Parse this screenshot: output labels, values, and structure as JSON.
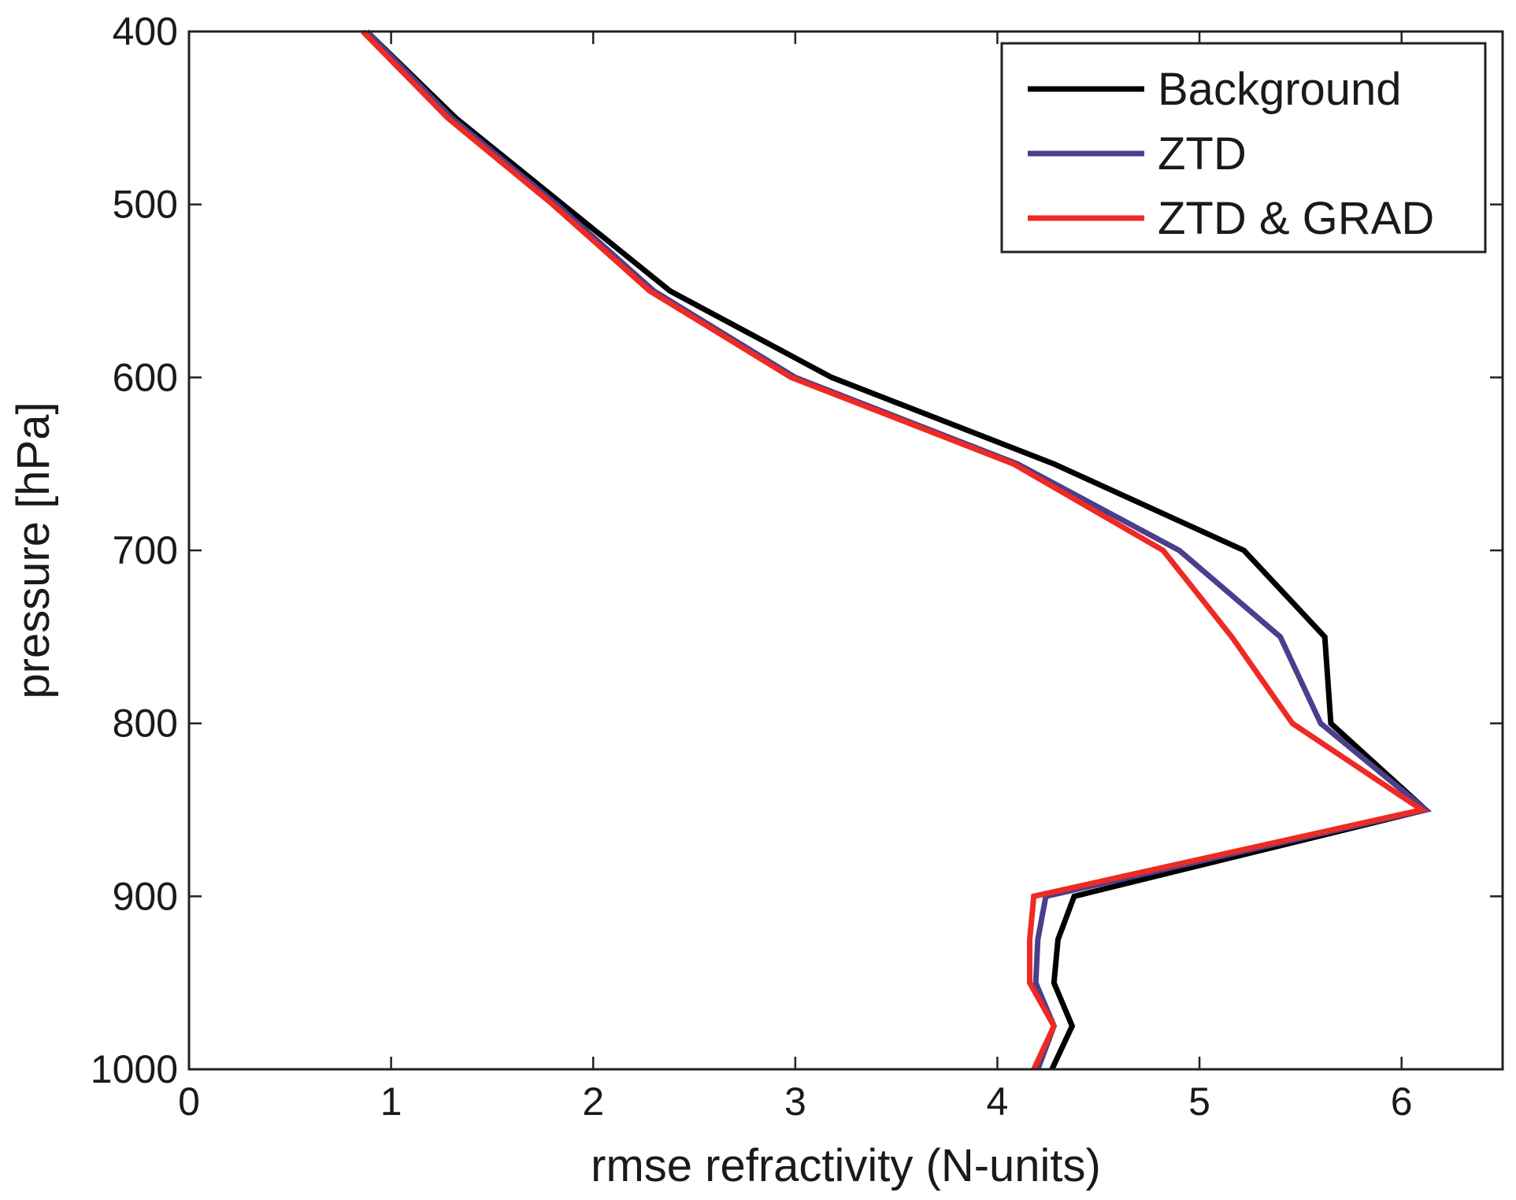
{
  "chart_data": {
    "type": "line",
    "title": "",
    "xlabel": "rmse refractivity (N-units)",
    "ylabel": "pressure [hPa]",
    "xlim": [
      0,
      6.5
    ],
    "ylim": [
      400,
      1000
    ],
    "y_reversed": true,
    "grid": false,
    "legend_position": "top-right",
    "xticks": [
      "0",
      "1",
      "2",
      "3",
      "4",
      "5",
      "6"
    ],
    "yticks": [
      "400",
      "500",
      "600",
      "700",
      "800",
      "900",
      "1000"
    ],
    "pressure_levels": [
      400,
      450,
      500,
      550,
      600,
      650,
      700,
      750,
      800,
      850,
      900,
      925,
      950,
      975,
      1000
    ],
    "series": [
      {
        "name": "Background",
        "color": "#000000",
        "values": [
          0.88,
          1.32,
          1.85,
          2.38,
          3.18,
          4.28,
          5.22,
          5.62,
          5.65,
          6.12,
          4.38,
          4.3,
          4.28,
          4.37,
          4.27
        ]
      },
      {
        "name": "ZTD",
        "color": "#4b3f8c",
        "values": [
          0.88,
          1.3,
          1.82,
          2.3,
          3.0,
          4.1,
          4.9,
          5.4,
          5.6,
          6.12,
          4.24,
          4.2,
          4.19,
          4.28,
          4.2
        ]
      },
      {
        "name": "ZTD & GRAD",
        "color": "#ee2a24",
        "values": [
          0.86,
          1.28,
          1.8,
          2.28,
          2.98,
          4.08,
          4.82,
          5.16,
          5.46,
          6.1,
          4.18,
          4.16,
          4.16,
          4.28,
          4.18
        ]
      }
    ]
  }
}
